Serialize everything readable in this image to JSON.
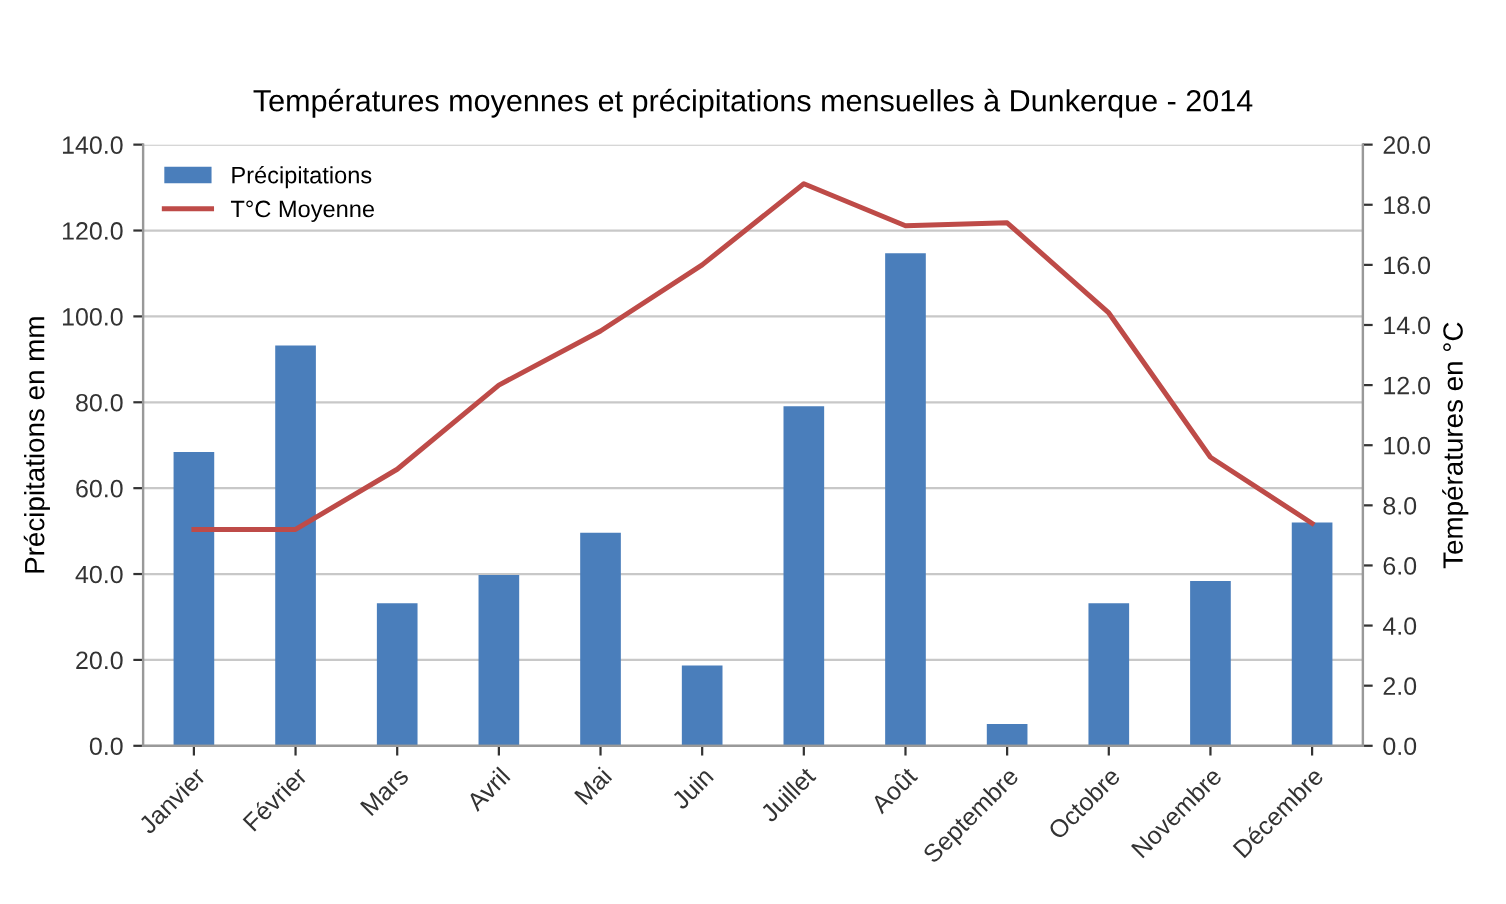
{
  "chart_data": {
    "type": "bar",
    "title": "Températures moyennes et précipitations mensuelles à Dunkerque - 2014",
    "ylabel": "Précipitations en mm",
    "y2label": "Températures en °C",
    "categories": [
      "Janvier",
      "Février",
      "Mars",
      "Avril",
      "Mai",
      "Juin",
      "Juillet",
      "Août",
      "Septembre",
      "Octobre",
      "Novembre",
      "Décembre"
    ],
    "series": [
      {
        "name": "Précipitations",
        "color": "#4a7ebb",
        "values": [
          68.4,
          93.2,
          33.2,
          39.8,
          49.6,
          18.7,
          79.1,
          114.7,
          5.1,
          33.2,
          38.4,
          52.0
        ]
      },
      {
        "name": "T°C Moyenne",
        "type": "line",
        "axis": "y2",
        "color": "#be4b48",
        "values": [
          7.2,
          7.2,
          9.2,
          12.0,
          13.8,
          16.0,
          18.7,
          17.3,
          17.4,
          14.4,
          9.6,
          7.4
        ]
      }
    ],
    "ylim": [
      0,
      140
    ],
    "yticks": [
      {
        "value": 0,
        "label": "0.0"
      },
      {
        "value": 20,
        "label": "20.0"
      },
      {
        "value": 40,
        "label": "40.0"
      },
      {
        "value": 60,
        "label": "60.0"
      },
      {
        "value": 80,
        "label": "80.0"
      },
      {
        "value": 100,
        "label": "100.0"
      },
      {
        "value": 120,
        "label": "120.0"
      },
      {
        "value": 140,
        "label": "140.0"
      }
    ],
    "y2lim": [
      0,
      20
    ],
    "y2ticks": [
      {
        "value": 0,
        "label": "0.0"
      },
      {
        "value": 2,
        "label": "2.0"
      },
      {
        "value": 4,
        "label": "4.0"
      },
      {
        "value": 6,
        "label": "6.0"
      },
      {
        "value": 8,
        "label": "8.0"
      },
      {
        "value": 10,
        "label": "10.0"
      },
      {
        "value": 12,
        "label": "12.0"
      },
      {
        "value": 14,
        "label": "14.0"
      },
      {
        "value": 16,
        "label": "16.0"
      },
      {
        "value": 18,
        "label": "18.0"
      },
      {
        "value": 20,
        "label": "20.0"
      }
    ],
    "grid": "y",
    "legend": "top left"
  }
}
